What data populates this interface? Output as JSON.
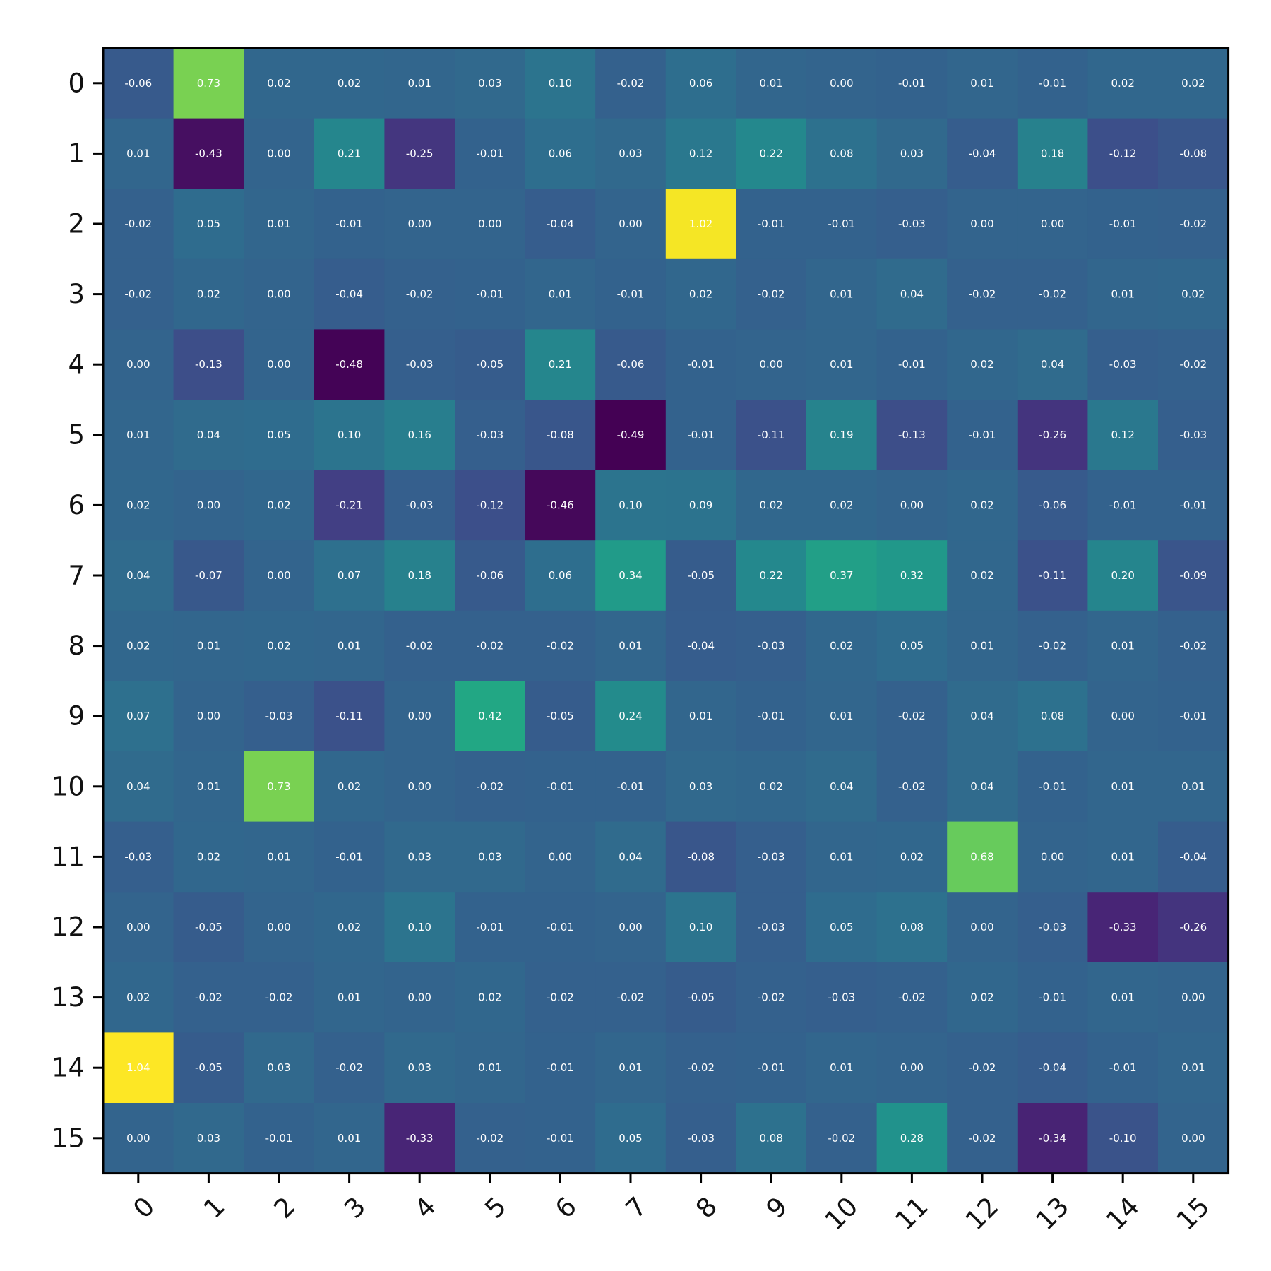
{
  "chart_data": {
    "type": "heatmap",
    "title": "",
    "xlabel": "",
    "ylabel": "",
    "colormap": "viridis",
    "vmin": -0.49,
    "vmax": 1.04,
    "show_values": true,
    "value_format": "2 decimals",
    "x_ticks": [
      "0",
      "1",
      "2",
      "3",
      "4",
      "5",
      "6",
      "7",
      "8",
      "9",
      "10",
      "11",
      "12",
      "13",
      "14",
      "15"
    ],
    "y_ticks": [
      "0",
      "1",
      "2",
      "3",
      "4",
      "5",
      "6",
      "7",
      "8",
      "9",
      "10",
      "11",
      "12",
      "13",
      "14",
      "15"
    ],
    "values": [
      [
        -0.06,
        0.73,
        0.02,
        0.02,
        0.01,
        0.03,
        0.1,
        -0.02,
        0.06,
        0.01,
        0.0,
        -0.01,
        0.01,
        -0.01,
        0.02,
        0.02
      ],
      [
        0.01,
        -0.43,
        0.0,
        0.21,
        -0.25,
        -0.01,
        0.06,
        0.03,
        0.12,
        0.22,
        0.08,
        0.03,
        -0.04,
        0.18,
        -0.12,
        -0.08
      ],
      [
        -0.02,
        0.05,
        0.01,
        -0.01,
        -0.0,
        -0.0,
        -0.04,
        0.0,
        1.02,
        -0.01,
        -0.01,
        -0.03,
        -0.0,
        0.0,
        -0.01,
        -0.02
      ],
      [
        -0.02,
        0.02,
        0.0,
        -0.04,
        -0.02,
        -0.01,
        0.01,
        -0.01,
        0.02,
        -0.02,
        0.01,
        0.04,
        -0.02,
        -0.02,
        0.01,
        0.02
      ],
      [
        0.0,
        -0.13,
        -0.0,
        -0.48,
        -0.03,
        -0.05,
        0.21,
        -0.06,
        -0.01,
        0.0,
        0.01,
        -0.01,
        0.02,
        0.04,
        -0.03,
        -0.02
      ],
      [
        0.01,
        0.04,
        0.05,
        0.1,
        0.16,
        -0.03,
        -0.08,
        -0.49,
        -0.01,
        -0.11,
        0.19,
        -0.13,
        -0.01,
        -0.26,
        0.12,
        -0.03
      ],
      [
        0.02,
        -0.0,
        0.02,
        -0.21,
        -0.03,
        -0.12,
        -0.46,
        0.1,
        0.09,
        0.02,
        0.02,
        -0.0,
        0.02,
        -0.06,
        -0.01,
        -0.01
      ],
      [
        0.04,
        -0.07,
        0.0,
        0.07,
        0.18,
        -0.06,
        0.06,
        0.34,
        -0.05,
        0.22,
        0.37,
        0.32,
        0.02,
        -0.11,
        0.2,
        -0.09
      ],
      [
        0.02,
        0.01,
        0.02,
        0.01,
        -0.02,
        -0.02,
        -0.02,
        0.01,
        -0.04,
        -0.03,
        0.02,
        0.05,
        0.01,
        -0.02,
        0.01,
        -0.02
      ],
      [
        0.07,
        -0.0,
        -0.03,
        -0.11,
        -0.0,
        0.42,
        -0.05,
        0.24,
        0.01,
        -0.01,
        0.01,
        -0.02,
        0.04,
        0.08,
        -0.0,
        -0.01
      ],
      [
        0.04,
        0.01,
        0.73,
        0.02,
        0.0,
        -0.02,
        -0.01,
        -0.01,
        0.03,
        0.02,
        0.04,
        -0.02,
        0.04,
        -0.01,
        0.01,
        0.01
      ],
      [
        -0.03,
        0.02,
        0.01,
        -0.01,
        0.03,
        0.03,
        -0.0,
        0.04,
        -0.08,
        -0.03,
        0.01,
        0.02,
        0.68,
        -0.0,
        0.01,
        -0.04
      ],
      [
        -0.0,
        -0.05,
        -0.0,
        0.02,
        0.1,
        -0.01,
        -0.01,
        0.0,
        0.1,
        -0.03,
        0.05,
        0.08,
        -0.0,
        -0.03,
        -0.33,
        -0.26
      ],
      [
        0.02,
        -0.02,
        -0.02,
        0.01,
        0.0,
        0.02,
        -0.02,
        -0.02,
        -0.05,
        -0.02,
        -0.03,
        -0.02,
        0.02,
        -0.01,
        0.01,
        -0.0
      ],
      [
        1.04,
        -0.05,
        0.03,
        -0.02,
        0.03,
        0.01,
        -0.01,
        0.01,
        -0.02,
        -0.01,
        0.01,
        0.0,
        -0.02,
        -0.04,
        -0.01,
        0.01
      ],
      [
        0.0,
        0.03,
        -0.01,
        0.01,
        -0.33,
        -0.02,
        -0.01,
        0.05,
        -0.03,
        0.08,
        -0.02,
        0.28,
        -0.02,
        -0.34,
        -0.1,
        -0.0
      ]
    ]
  }
}
